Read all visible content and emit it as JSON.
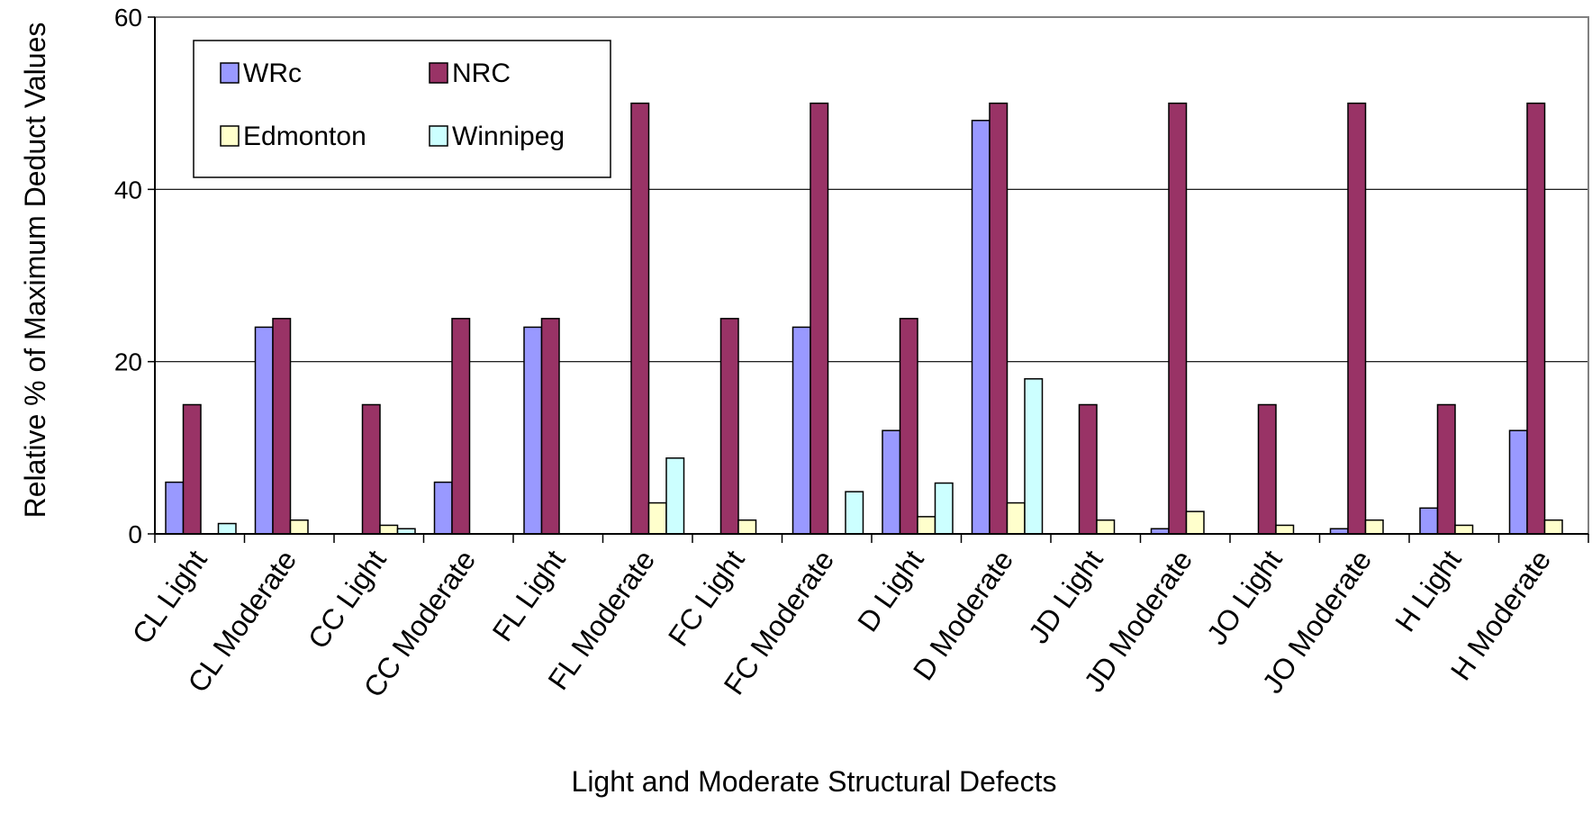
{
  "chart_data": {
    "type": "bar",
    "title": "",
    "xlabel": "Light and Moderate Structural Defects",
    "ylabel": "Relative % of Maximum Deduct Values",
    "ylim": [
      0,
      60
    ],
    "yticks": [
      0,
      20,
      40,
      60
    ],
    "grid": true,
    "legend_position": "top-left",
    "categories": [
      "CL Light",
      "CL Moderate",
      "CC Light",
      "CC Moderate",
      "FL Light",
      "FL Moderate",
      "FC Light",
      "FC Moderate",
      "D Light",
      "D Moderate",
      "JD Light",
      "JD Moderate",
      "JO Light",
      "JO Moderate",
      "H Light",
      "H Moderate"
    ],
    "series": [
      {
        "name": "WRc",
        "color": "#9999ff",
        "values": [
          6,
          24,
          0,
          6,
          24,
          0,
          0,
          24,
          12,
          48,
          0,
          0.6,
          0,
          0.6,
          3,
          12
        ]
      },
      {
        "name": "NRC",
        "color": "#993366",
        "values": [
          15,
          25,
          15,
          25,
          25,
          50,
          25,
          50,
          25,
          50,
          15,
          50,
          15,
          50,
          15,
          50
        ]
      },
      {
        "name": "Edmonton",
        "color": "#ffffcc",
        "values": [
          0,
          1.6,
          1,
          0,
          0,
          3.6,
          1.6,
          0,
          2,
          3.6,
          1.6,
          2.6,
          1,
          1.6,
          1,
          1.6
        ]
      },
      {
        "name": "Winnipeg",
        "color": "#ccffff",
        "values": [
          1.2,
          0,
          0.6,
          0,
          0,
          8.8,
          0,
          4.9,
          5.9,
          18,
          0,
          0,
          0,
          0,
          0,
          0
        ]
      }
    ]
  }
}
